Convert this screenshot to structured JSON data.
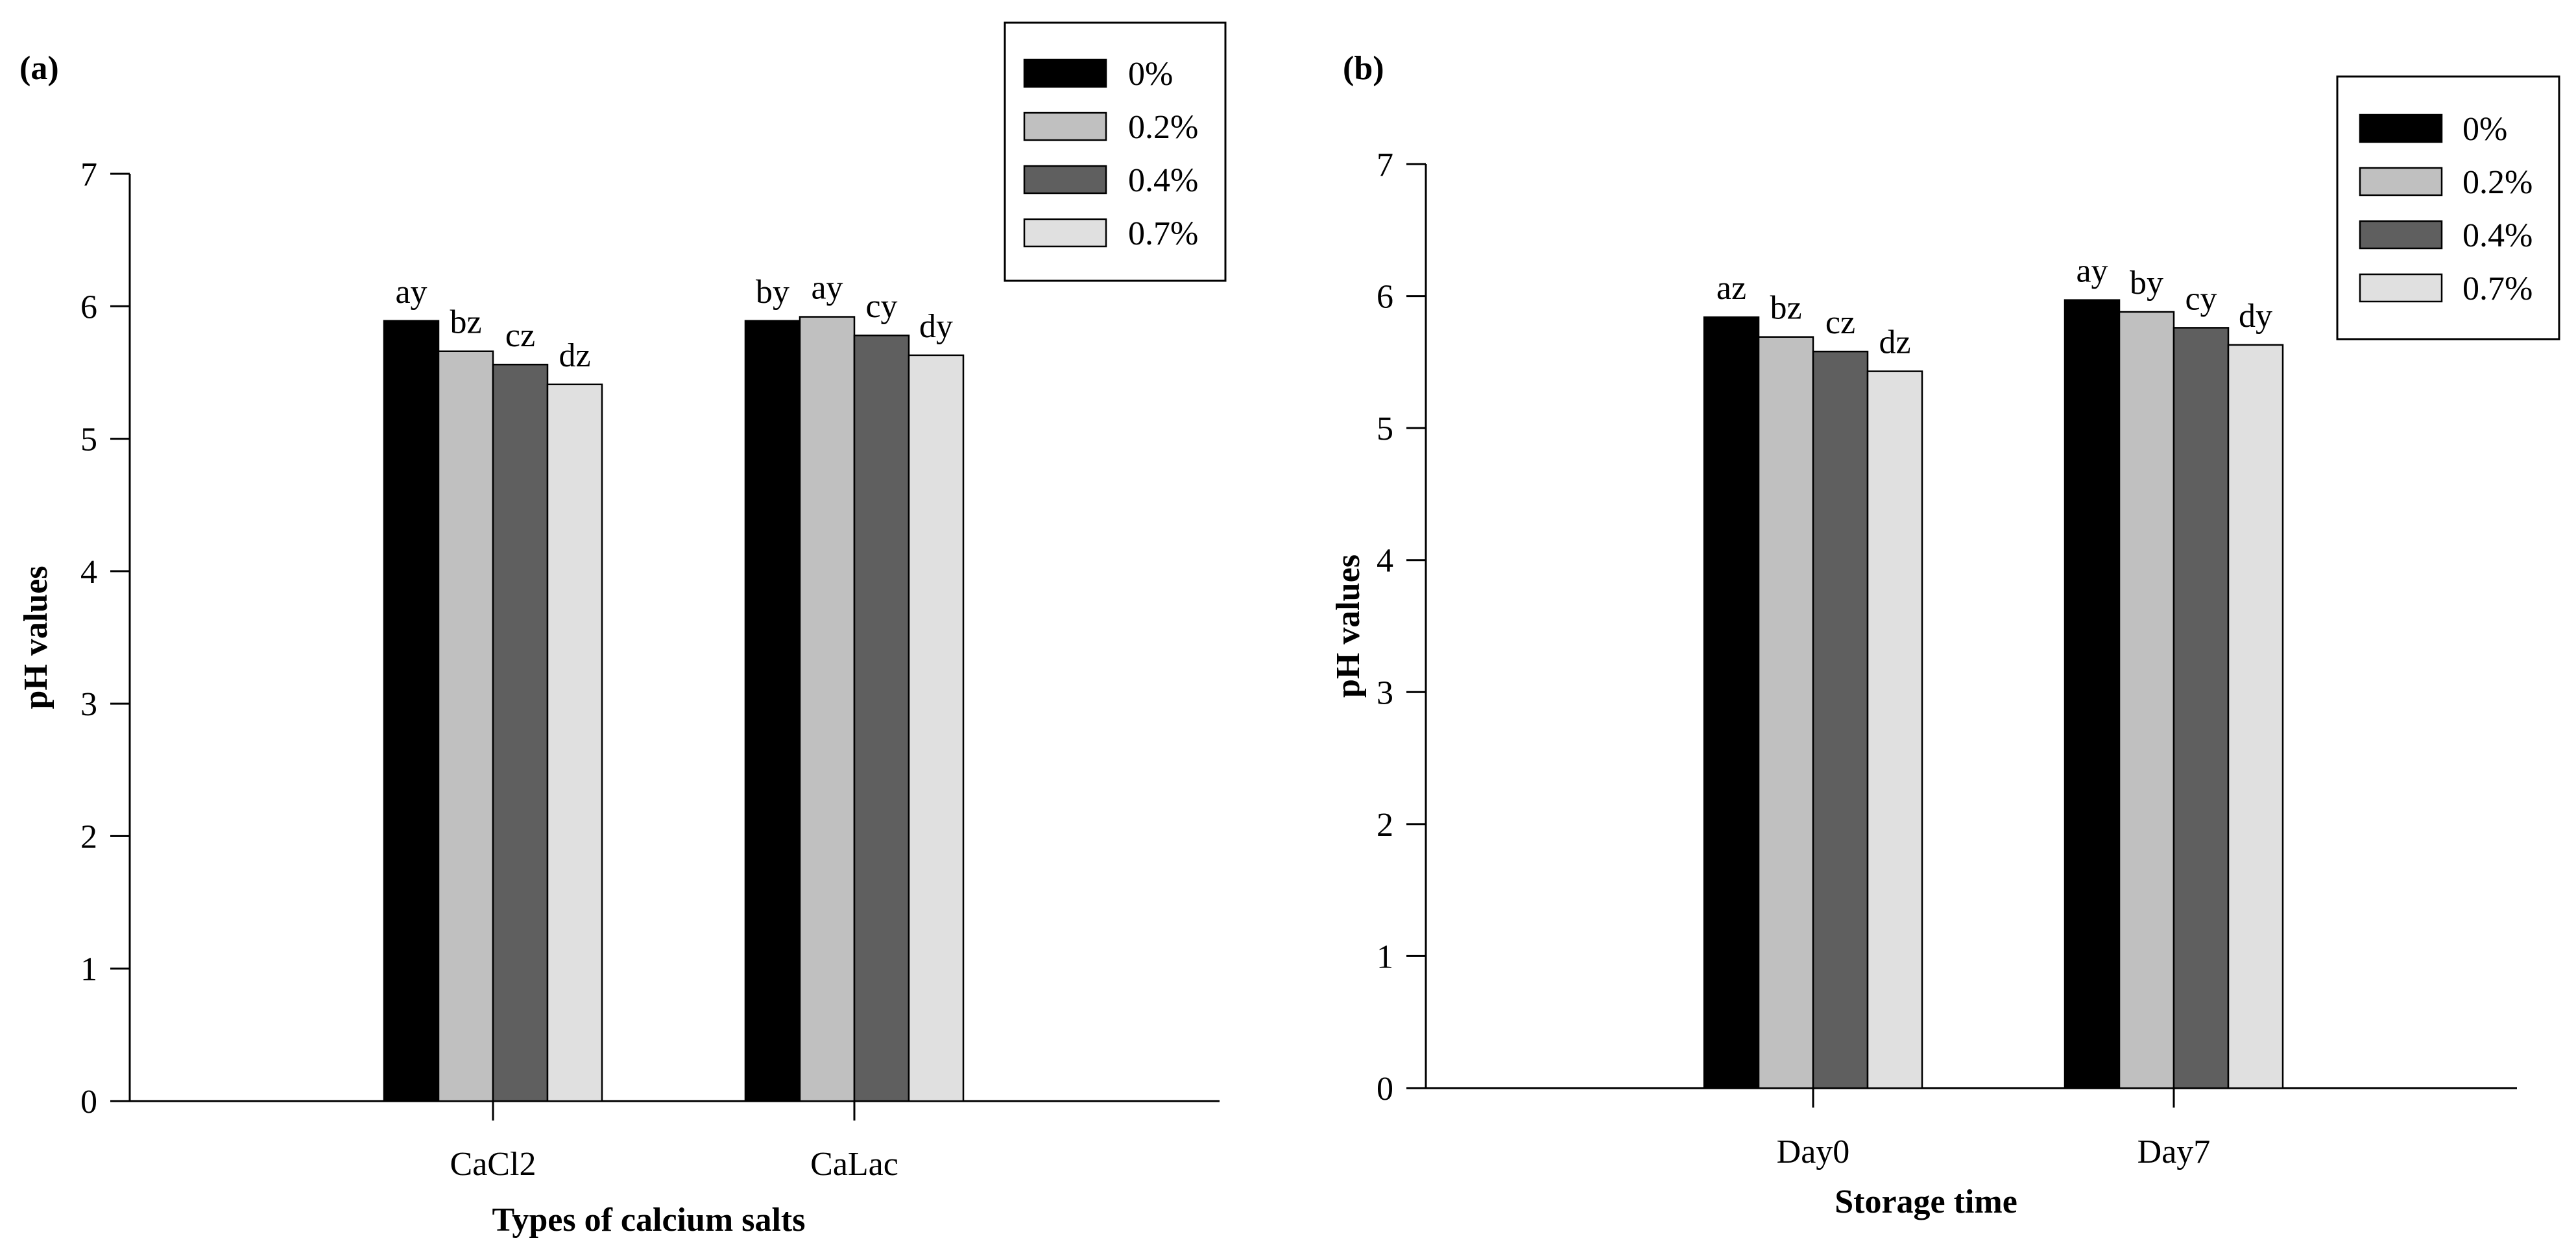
{
  "chart_data": [
    {
      "panel_label": "(a)",
      "type": "bar",
      "title": "",
      "xlabel": "Types of calcium salts",
      "ylabel": "pH values",
      "ylim": [
        0,
        7
      ],
      "yticks": [
        "0",
        "1",
        "2",
        "3",
        "4",
        "5",
        "6",
        "7"
      ],
      "categories": [
        "CaCl2",
        "CaLac"
      ],
      "legend_position": "top-right",
      "series": [
        {
          "name": "0%",
          "color": "#000000",
          "values": [
            5.89,
            5.89
          ],
          "labels": [
            "ay",
            "by"
          ]
        },
        {
          "name": "0.2%",
          "color": "#c0c0c0",
          "values": [
            5.66,
            5.92
          ],
          "labels": [
            "bz",
            "ay"
          ]
        },
        {
          "name": "0.4%",
          "color": "#5f5f5f",
          "values": [
            5.56,
            5.78
          ],
          "labels": [
            "cz",
            "cy"
          ]
        },
        {
          "name": "0.7%",
          "color": "#e0e0e0",
          "values": [
            5.41,
            5.63
          ],
          "labels": [
            "dz",
            "dy"
          ]
        }
      ]
    },
    {
      "panel_label": "(b)",
      "type": "bar",
      "title": "",
      "xlabel": "Storage time",
      "ylabel": "pH values",
      "ylim": [
        0,
        7
      ],
      "yticks": [
        "0",
        "1",
        "2",
        "3",
        "4",
        "5",
        "6",
        "7"
      ],
      "categories": [
        "Day0",
        "Day7"
      ],
      "legend_position": "top-right",
      "series": [
        {
          "name": "0%",
          "color": "#000000",
          "values": [
            5.84,
            5.97
          ],
          "labels": [
            "az",
            "ay"
          ]
        },
        {
          "name": "0.2%",
          "color": "#c0c0c0",
          "values": [
            5.69,
            5.88
          ],
          "labels": [
            "bz",
            "by"
          ]
        },
        {
          "name": "0.4%",
          "color": "#5f5f5f",
          "values": [
            5.58,
            5.76
          ],
          "labels": [
            "cz",
            "cy"
          ]
        },
        {
          "name": "0.7%",
          "color": "#e0e0e0",
          "values": [
            5.43,
            5.63
          ],
          "labels": [
            "dz",
            "dy"
          ]
        }
      ]
    }
  ]
}
